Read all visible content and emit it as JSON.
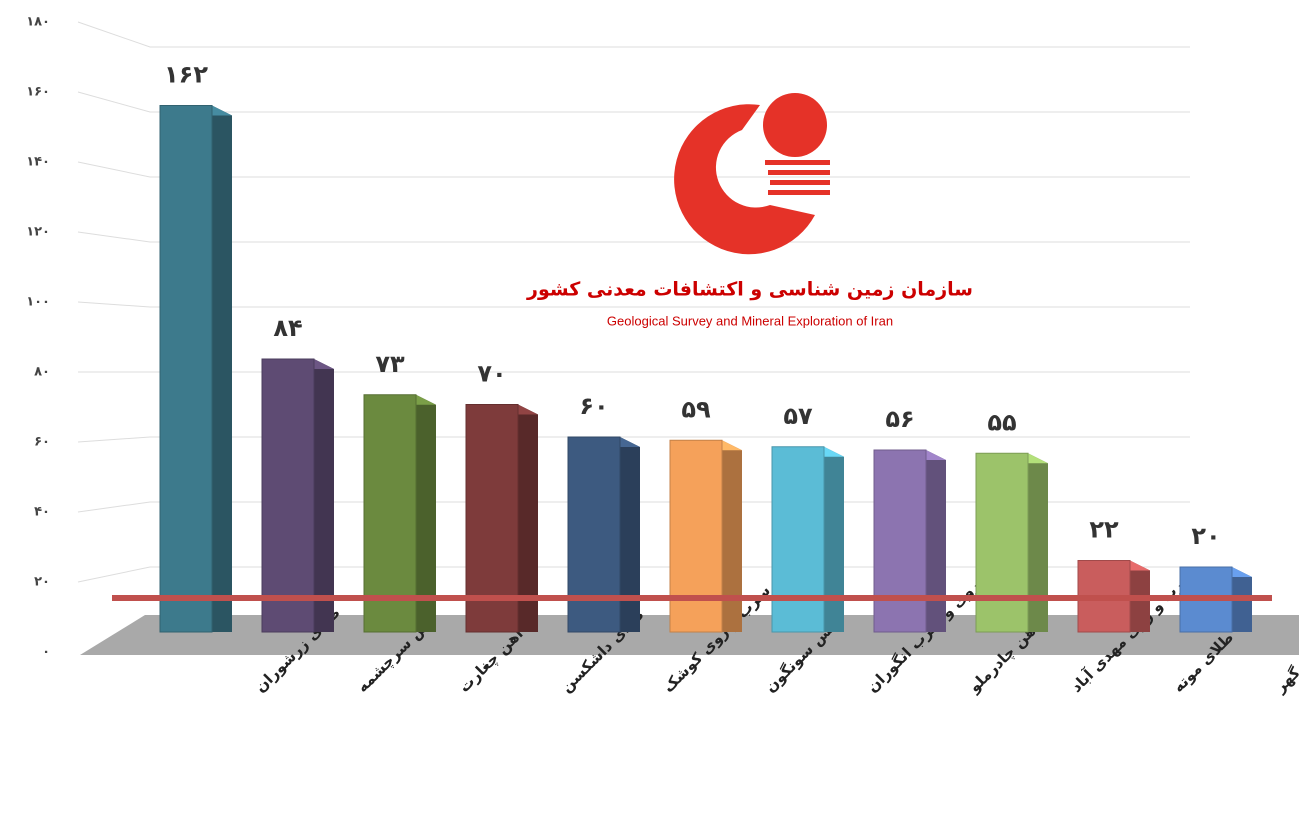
{
  "chart_data": {
    "type": "bar3d",
    "categories": [
      "طلای زرشوران",
      "مس سرچشمه",
      "آهن چغارت",
      "طلای داشکسن",
      "سرب و روی کوشک",
      "مس سونگون",
      "روی و سرب انگوران",
      "آهن چادرملو",
      "سرب و روی مهدی آباد",
      "طلای موته",
      "آهن گل گهر"
    ],
    "values": [
      162,
      84,
      73,
      70,
      60,
      59,
      57,
      56,
      55,
      22,
      20
    ],
    "value_labels": [
      "۱۶۲",
      "۸۴",
      "۷۳",
      "۷۰",
      "۶۰",
      "۵۹",
      "۵۷",
      "۵۶",
      "۵۵",
      "۲۲",
      "۲۰"
    ],
    "colors": [
      "#3d7a8c",
      "#5e4b73",
      "#6b8a3f",
      "#7e3b3b",
      "#3d5a80",
      "#f5a15a",
      "#5bbcd6",
      "#8c74b0",
      "#9cc36a",
      "#c95d5d",
      "#5b8bd0"
    ],
    "ylim": [
      0,
      180
    ],
    "yticks": [
      {
        "value": 0,
        "label": "۰"
      },
      {
        "value": 20,
        "label": "۲۰"
      },
      {
        "value": 40,
        "label": "۴۰"
      },
      {
        "value": 60,
        "label": "۶۰"
      },
      {
        "value": 80,
        "label": "۸۰"
      },
      {
        "value": 100,
        "label": "۱۰۰"
      },
      {
        "value": 120,
        "label": "۱۲۰"
      },
      {
        "value": 140,
        "label": "۱۴۰"
      },
      {
        "value": 160,
        "label": "۱۶۰"
      },
      {
        "value": 180,
        "label": "۱۸۰"
      }
    ],
    "grid": true,
    "logo_title": "سازمان زمین شناسی و اکتشافات معدنی کشور",
    "logo_subtitle": "Geological Survey and Mineral Exploration of Iran"
  }
}
